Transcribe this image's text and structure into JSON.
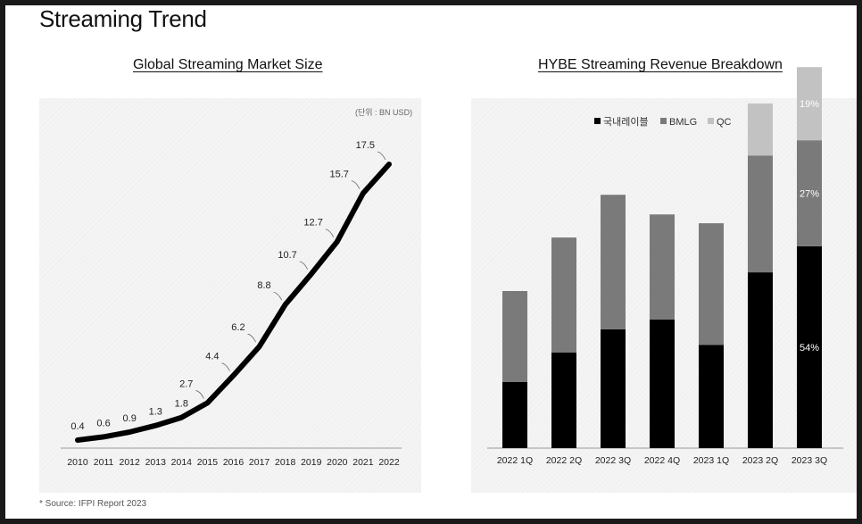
{
  "page": {
    "title": "Streaming Trend",
    "footnote": "* Source: IFPI Report 2023"
  },
  "chart_data": [
    {
      "type": "line",
      "title": "Global Streaming Market Size",
      "unit_note": "(단위 : BN USD)",
      "x": [
        "2010",
        "2011",
        "2012",
        "2013",
        "2014",
        "2015",
        "2016",
        "2017",
        "2018",
        "2019",
        "2020",
        "2021",
        "2022"
      ],
      "values": [
        0.4,
        0.6,
        0.9,
        1.3,
        1.8,
        2.7,
        4.4,
        6.2,
        8.8,
        10.7,
        12.7,
        15.7,
        17.5
      ],
      "data_labels": [
        "0.4",
        "0.6",
        "0.9",
        "1.3",
        "1.8",
        "2.7",
        "4.4",
        "6.2",
        "8.8",
        "10.7",
        "12.7",
        "15.7",
        "17.5"
      ],
      "ylim": [
        0,
        18
      ],
      "grid": false,
      "line_color": "#000000"
    },
    {
      "type": "bar",
      "stacked": true,
      "title": "HYBE Streaming Revenue Breakdown",
      "categories": [
        "2022 1Q",
        "2022 2Q",
        "2022 3Q",
        "2022 4Q",
        "2023 1Q",
        "2023 2Q",
        "2023 3Q"
      ],
      "series": [
        {
          "name": "국내레이블",
          "color": "#000000",
          "values": [
            13.5,
            19.5,
            24.2,
            26.2,
            21.0,
            35.8,
            41.1
          ]
        },
        {
          "name": "BMLG",
          "color": "#7a7a7a",
          "values": [
            18.5,
            23.4,
            27.4,
            21.4,
            24.8,
            23.8,
            21.6
          ]
        },
        {
          "name": "QC",
          "color": "#c2c2c2",
          "values": [
            0,
            0,
            0,
            0,
            0,
            10.6,
            14.9
          ]
        }
      ],
      "segment_labels": [
        {
          "category": "2023 3Q",
          "series": "국내레이블",
          "text": "54%"
        },
        {
          "category": "2023 3Q",
          "series": "BMLG",
          "text": "27%"
        },
        {
          "category": "2023 3Q",
          "series": "QC",
          "text": "19%"
        }
      ],
      "ylim": [
        0,
        80
      ],
      "legend": "top-center",
      "grid": false
    }
  ]
}
